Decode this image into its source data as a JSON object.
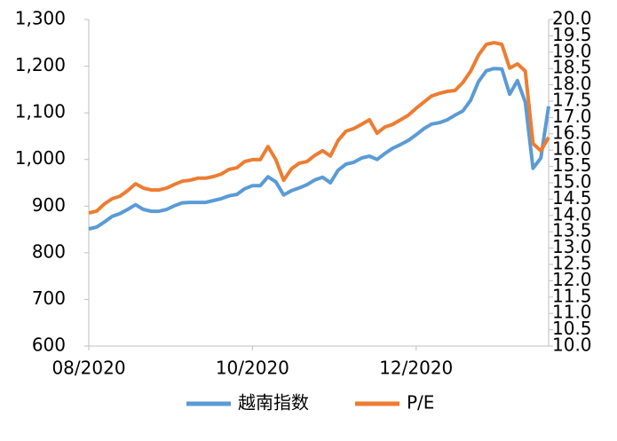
{
  "chart_data": {
    "type": "line",
    "categories": [
      "08/2020",
      null,
      null,
      null,
      null,
      null,
      null,
      null,
      null,
      null,
      null,
      null,
      null,
      null,
      null,
      null,
      null,
      null,
      null,
      null,
      null,
      "10/2020",
      null,
      null,
      null,
      null,
      null,
      null,
      null,
      null,
      null,
      null,
      null,
      null,
      null,
      null,
      null,
      null,
      null,
      null,
      null,
      null,
      "12/2020",
      null,
      null,
      null,
      null,
      null,
      null,
      null,
      null,
      null,
      null,
      null,
      null,
      null,
      null,
      null,
      null,
      null
    ],
    "series": [
      {
        "name": "越南指数",
        "color": "#5b9bd5",
        "values": [
          851,
          855,
          866,
          878,
          884,
          893,
          903,
          893,
          889,
          889,
          893,
          901,
          907,
          908,
          908,
          908,
          912,
          916,
          922,
          925,
          937,
          944,
          944,
          963,
          952,
          924,
          933,
          939,
          946,
          956,
          962,
          950,
          977,
          990,
          994,
          1003,
          1007,
          1000,
          1013,
          1024,
          1032,
          1041,
          1053,
          1066,
          1076,
          1079,
          1085,
          1095,
          1104,
          1127,
          1167,
          1190,
          1195,
          1194,
          1140,
          1169,
          1123,
          981,
          1003,
          1114
        ]
      },
      {
        "name": "P/E",
        "color": "#ed7d31",
        "axis": "y2",
        "values": [
          14.08,
          14.13,
          14.35,
          14.51,
          14.59,
          14.76,
          14.97,
          14.84,
          14.78,
          14.78,
          14.84,
          14.95,
          15.05,
          15.08,
          15.14,
          15.14,
          15.19,
          15.27,
          15.41,
          15.46,
          15.65,
          15.71,
          15.71,
          16.11,
          15.71,
          15.08,
          15.43,
          15.6,
          15.65,
          15.84,
          15.98,
          15.82,
          16.3,
          16.58,
          16.66,
          16.79,
          16.93,
          16.52,
          16.71,
          16.79,
          16.93,
          17.07,
          17.28,
          17.47,
          17.66,
          17.74,
          17.8,
          17.83,
          18.07,
          18.42,
          18.91,
          19.24,
          19.29,
          19.24,
          18.51,
          18.64,
          18.42,
          16.2,
          15.98,
          16.39
        ]
      }
    ],
    "ylim": [
      600,
      1300
    ],
    "yticks": [
      600,
      700,
      800,
      900,
      {
        "value": 1000,
        "label": "1,000"
      },
      {
        "value": 1100,
        "label": "1,100"
      },
      {
        "value": 1200,
        "label": "1,200"
      },
      {
        "value": 1300,
        "label": "1,300"
      }
    ],
    "y2lim": [
      10,
      20
    ],
    "y2ticks": [
      {
        "value": 10,
        "label": "10.0"
      },
      10.5,
      {
        "value": 11,
        "label": "11.0"
      },
      11.5,
      {
        "value": 12,
        "label": "12.0"
      },
      12.5,
      {
        "value": 13,
        "label": "13.0"
      },
      13.5,
      {
        "value": 14,
        "label": "14.0"
      },
      14.5,
      {
        "value": 15,
        "label": "15.0"
      },
      15.5,
      {
        "value": 16,
        "label": "16.0"
      },
      16.5,
      {
        "value": 17,
        "label": "17.0"
      },
      17.5,
      {
        "value": 18,
        "label": "18.0"
      },
      18.5,
      {
        "value": 19,
        "label": "19.0"
      },
      19.5,
      {
        "value": 20,
        "label": "20.0"
      }
    ],
    "legend": "bottom"
  }
}
